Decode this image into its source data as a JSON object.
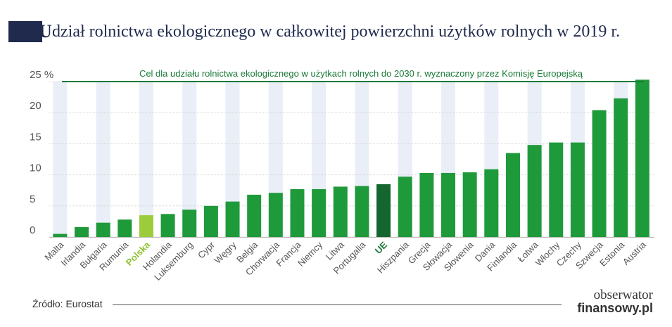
{
  "header": {
    "title_initial": "U",
    "title_rest": "dział rolnictwa ekologicznego w całkowitej powierzchni użytków rolnych w 2019 r."
  },
  "chart_data": {
    "type": "bar",
    "title": "Udział rolnictwa ekologicznego w całkowitej powierzchni użytków rolnych w 2019 r.",
    "y_unit": "%",
    "ylim": [
      0,
      25
    ],
    "yticks": [
      0,
      5,
      10,
      15,
      20,
      25
    ],
    "ytick_labels": [
      "0",
      "5",
      "10",
      "15",
      "20",
      "25"
    ],
    "grid": true,
    "categories": [
      "Malta",
      "Irlandia",
      "Bułgaria",
      "Rumunia",
      "Polska",
      "Holandia",
      "Luksemburg",
      "Cypr",
      "Węgry",
      "Belgia",
      "Chorwacja",
      "Francja",
      "Niemcy",
      "Litwa",
      "Portugalia",
      "UE",
      "Hiszpania",
      "Grecja",
      "Słowacja",
      "Słowenia",
      "Dania",
      "Finlandia",
      "Łotwa",
      "Włochy",
      "Czechy",
      "Szwecja",
      "Estonia",
      "Austria"
    ],
    "values": [
      0.5,
      1.6,
      2.3,
      2.8,
      3.5,
      3.7,
      4.4,
      5.0,
      5.7,
      6.8,
      7.1,
      7.7,
      7.7,
      8.1,
      8.2,
      8.5,
      9.7,
      10.3,
      10.3,
      10.4,
      10.9,
      13.5,
      14.8,
      15.2,
      15.2,
      20.4,
      22.3,
      25.3
    ],
    "colors": {
      "default": "#1f9a3a",
      "highlight_polska": "#9ccc3c",
      "highlight_ue": "#14662e",
      "label_default": "#555555",
      "label_polska": "#8cc230",
      "label_ue": "#1a7a38",
      "target_line": "#1a7a38",
      "column_band": "#e9eef7"
    },
    "highlight": {
      "Polska": "polska",
      "UE": "ue"
    },
    "target": {
      "value": 25,
      "label": "Cel dla udziału rolnictwa ekologicznego w użytkach rolnych do 2030 r. wyznaczony przez Komisję Europejską"
    }
  },
  "footer": {
    "source": "Źródło: Eurostat",
    "logo_line1": "obserwator",
    "logo_line2": "finansowy.pl"
  }
}
